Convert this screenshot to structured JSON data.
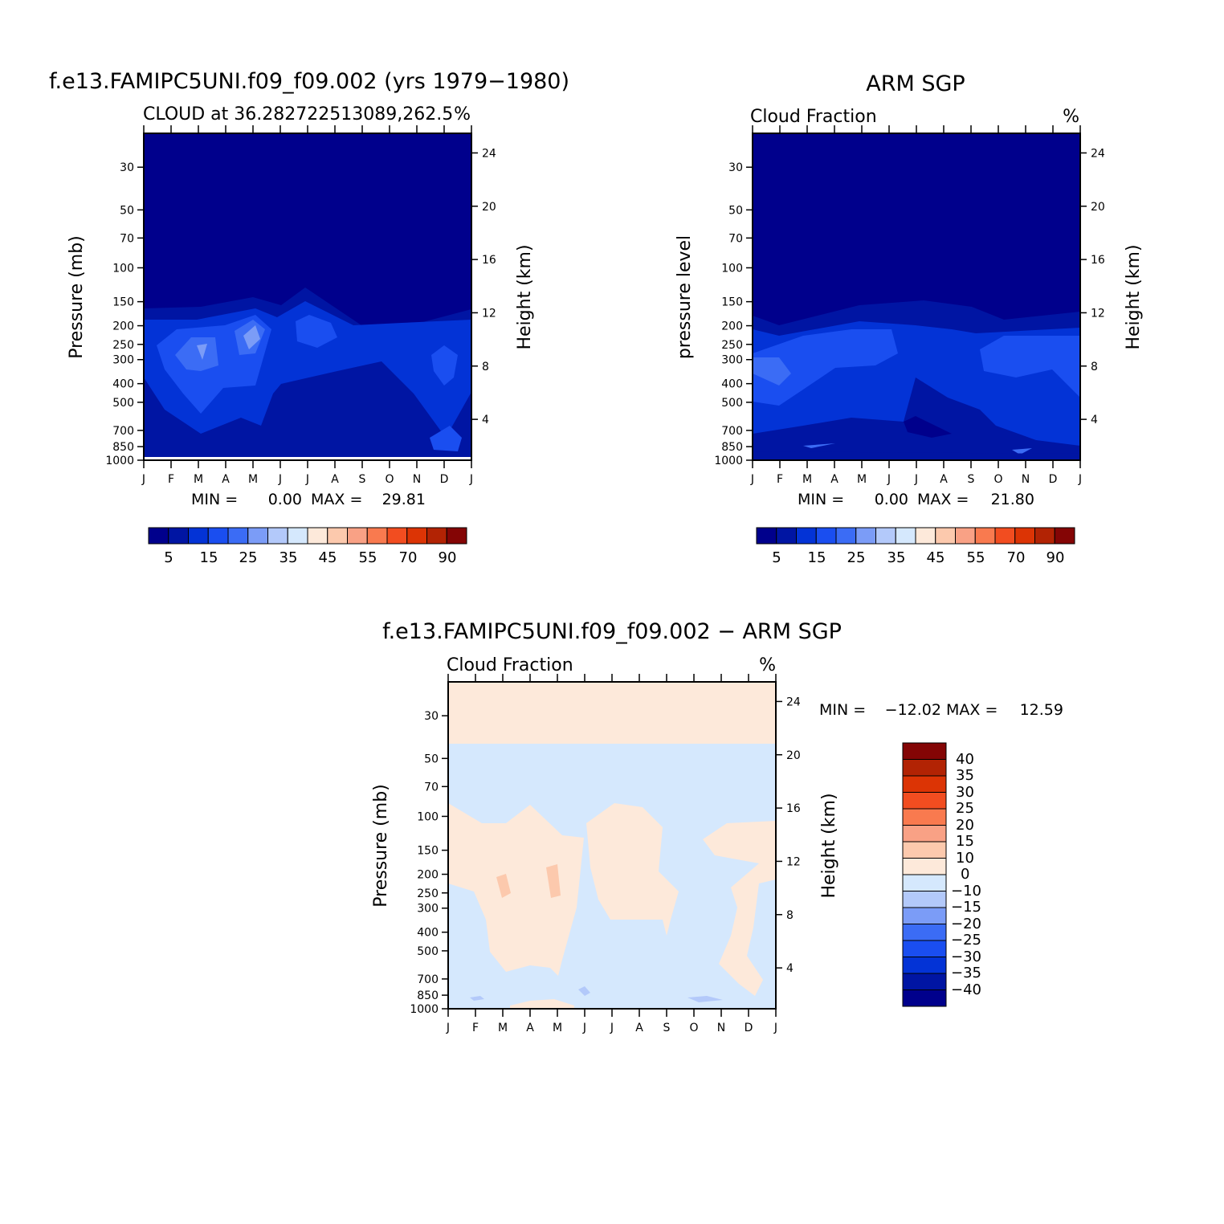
{
  "colors": {
    "levels_abs": [
      "#00008c",
      "#0015a3",
      "#0333d6",
      "#1a4ef0",
      "#3b6cf5",
      "#7b9cf7",
      "#b3c9fa",
      "#d5e8fd",
      "#fde9da",
      "#fcc9ad",
      "#f9a185",
      "#f97a4f",
      "#f24d20",
      "#dc3405",
      "#b22304",
      "#840505"
    ],
    "levels_diff": [
      "#00008c",
      "#0015a3",
      "#0333d6",
      "#1a4ef0",
      "#3b6cf5",
      "#7b9cf7",
      "#b3c9fa",
      "#d5e8fd",
      "#fde9da",
      "#fcc9ad",
      "#f9a185",
      "#f97a4f",
      "#f24d20",
      "#dc3405",
      "#b22304",
      "#840505"
    ]
  },
  "chart_data": [
    {
      "id": "model",
      "type": "heatmap",
      "title": "f.e13.FAMIPC5UNI.f09_f09.002 (yrs 1979−1980)",
      "subtitle_left": "CLOUD at 36.282722513089,262.5",
      "subtitle_right": "%",
      "ylabel": "Pressure (mb)",
      "ylabel_right": "Height (km)",
      "xticks": [
        "J",
        "F",
        "M",
        "A",
        "M",
        "J",
        "J",
        "A",
        "S",
        "O",
        "N",
        "D",
        "J"
      ],
      "pressure_ticks": [
        "30",
        "50",
        "70",
        "100",
        "150",
        "200",
        "250",
        "300",
        "400",
        "500",
        "700",
        "850",
        "1000"
      ],
      "height_ticks": [
        "24",
        "20",
        "16",
        "12",
        "8",
        "4"
      ],
      "min_label": "MIN =",
      "min_value": "0.00",
      "max_label": "MAX =",
      "max_value": "29.81",
      "min": 0.0,
      "max": 29.81,
      "colorbar_labels": [
        "5",
        "15",
        "25",
        "35",
        "45",
        "55",
        "70",
        "90"
      ]
    },
    {
      "id": "obs",
      "type": "heatmap",
      "title": "ARM SGP",
      "subtitle_left": "Cloud Fraction",
      "subtitle_right": "%",
      "ylabel": "pressure level",
      "ylabel_right": "Height (km)",
      "xticks": [
        "J",
        "F",
        "M",
        "A",
        "M",
        "J",
        "J",
        "A",
        "S",
        "O",
        "N",
        "D",
        "J"
      ],
      "pressure_ticks": [
        "30",
        "50",
        "70",
        "100",
        "150",
        "200",
        "250",
        "300",
        "400",
        "500",
        "700",
        "850",
        "1000"
      ],
      "height_ticks": [
        "24",
        "20",
        "16",
        "12",
        "8",
        "4"
      ],
      "min_label": "MIN =",
      "min_value": "0.00",
      "max_label": "MAX =",
      "max_value": "21.80",
      "min": 0.0,
      "max": 21.8,
      "colorbar_labels": [
        "5",
        "15",
        "25",
        "35",
        "45",
        "55",
        "70",
        "90"
      ]
    },
    {
      "id": "diff",
      "type": "heatmap",
      "title": "f.e13.FAMIPC5UNI.f09_f09.002 − ARM SGP",
      "subtitle_left": "Cloud Fraction",
      "subtitle_right": "%",
      "ylabel": "Pressure (mb)",
      "ylabel_right": "Height (km)",
      "xticks": [
        "J",
        "F",
        "M",
        "A",
        "M",
        "J",
        "J",
        "A",
        "S",
        "O",
        "N",
        "D",
        "J"
      ],
      "pressure_ticks": [
        "30",
        "50",
        "70",
        "100",
        "150",
        "200",
        "250",
        "300",
        "400",
        "500",
        "700",
        "850",
        "1000"
      ],
      "height_ticks": [
        "24",
        "20",
        "16",
        "12",
        "8",
        "4"
      ],
      "min_label": "MIN =",
      "min_value": "−12.02",
      "max_label": "MAX =",
      "max_value": "12.59",
      "min": -12.02,
      "max": 12.59,
      "colorbar_labels": [
        "40",
        "35",
        "30",
        "25",
        "20",
        "15",
        "10",
        "0",
        "−10",
        "−15",
        "−20",
        "−25",
        "−30",
        "−35",
        "−40"
      ]
    }
  ]
}
